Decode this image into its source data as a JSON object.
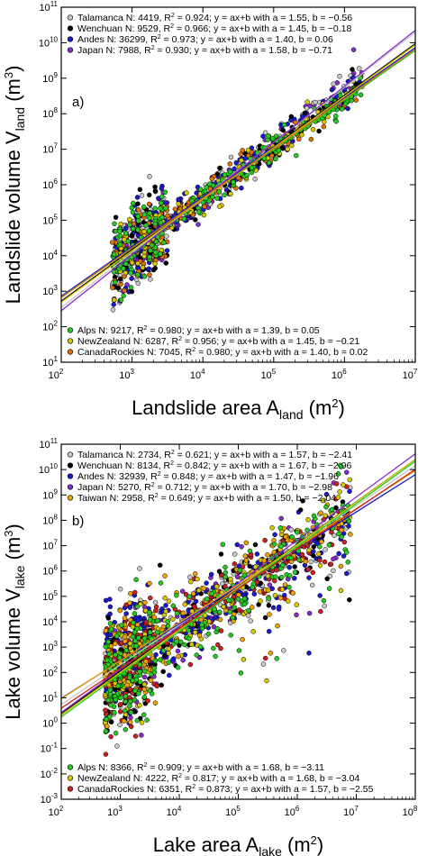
{
  "chart_data": [
    {
      "type": "scatter",
      "panel_label": "a)",
      "xscale": "log",
      "yscale": "log",
      "xlim": [
        100,
        10000000
      ],
      "ylim": [
        10,
        100000000000
      ],
      "xlabel": {
        "main": "Landslide area A",
        "sub": "land",
        "unit_pre": " (m",
        "unit_sup": "2",
        "unit_post": ")"
      },
      "ylabel": {
        "main": "Landslide volume V",
        "sub": "land",
        "unit_pre": " (m",
        "unit_sup": "3",
        "unit_post": ")"
      },
      "x_ticks": [
        {
          "base": "10",
          "exp": "2",
          "v": 100
        },
        {
          "base": "10",
          "exp": "3",
          "v": 1000
        },
        {
          "base": "10",
          "exp": "4",
          "v": 10000
        },
        {
          "base": "10",
          "exp": "5",
          "v": 100000
        },
        {
          "base": "10",
          "exp": "6",
          "v": 1000000
        },
        {
          "base": "10",
          "exp": "7",
          "v": 10000000
        }
      ],
      "y_ticks": [
        {
          "base": "10",
          "exp": "1",
          "v": 10
        },
        {
          "base": "10",
          "exp": "2",
          "v": 100
        },
        {
          "base": "10",
          "exp": "3",
          "v": 1000
        },
        {
          "base": "10",
          "exp": "4",
          "v": 10000
        },
        {
          "base": "10",
          "exp": "5",
          "v": 100000
        },
        {
          "base": "10",
          "exp": "6",
          "v": 1000000
        },
        {
          "base": "10",
          "exp": "7",
          "v": 10000000
        },
        {
          "base": "10",
          "exp": "8",
          "v": 100000000
        },
        {
          "base": "10",
          "exp": "9",
          "v": 1000000000
        },
        {
          "base": "10",
          "exp": "10",
          "v": 10000000000
        },
        {
          "base": "10",
          "exp": "11",
          "v": 100000000000
        }
      ],
      "legend_top": "top-left",
      "legend_bottom": "bottom-left",
      "series": [
        {
          "name": "Talamanca",
          "color": "#c8c8c8",
          "n": "4419",
          "r2": "0.924",
          "a": 1.55,
          "b": -0.56,
          "a_text": "1.55",
          "b_text": "−0.56",
          "legend": "top"
        },
        {
          "name": "Wenchuan",
          "color": "#000000",
          "n": "9529",
          "r2": "0.966",
          "a": 1.45,
          "b": -0.18,
          "a_text": "1.45",
          "b_text": "−0.18",
          "legend": "top"
        },
        {
          "name": "Andes",
          "color": "#1a1ad0",
          "n": "36299",
          "r2": "0.973",
          "a": 1.4,
          "b": 0.06,
          "a_text": "1.40",
          "b_text": "0.06",
          "legend": "top"
        },
        {
          "name": "Japan",
          "color": "#8a2bd0",
          "n": "7988",
          "r2": "0.930",
          "a": 1.58,
          "b": -0.71,
          "a_text": "1.58",
          "b_text": "−0.71",
          "legend": "top"
        },
        {
          "name": "Alps",
          "color": "#22cc22",
          "n": "9217",
          "r2": "0.980",
          "a": 1.39,
          "b": 0.05,
          "a_text": "1.39",
          "b_text": "0.05",
          "legend": "bottom"
        },
        {
          "name": "NewZealand",
          "color": "#d8c800",
          "n": "6287",
          "r2": "0.956",
          "a": 1.45,
          "b": -0.21,
          "a_text": "1.45",
          "b_text": "−0.21",
          "legend": "bottom"
        },
        {
          "name": "CanadaRockies",
          "color": "#e07000",
          "n": "7045",
          "r2": "0.980",
          "a": 1.4,
          "b": 0.02,
          "a_text": "1.40",
          "b_text": "0.02",
          "legend": "bottom"
        }
      ],
      "legend_fmt": {
        "n_prefix": " N: ",
        "r2_prefix": ", R",
        "r2_sup": "2",
        "r2_eq": " = ",
        "fit_text": "; y = ax+b with a = ",
        "b_prefix": ", b = "
      }
    },
    {
      "type": "scatter",
      "panel_label": "b)",
      "xscale": "log",
      "yscale": "log",
      "xlim": [
        100,
        100000000
      ],
      "ylim": [
        0.001,
        100000000000
      ],
      "xlabel": {
        "main": "Lake area A",
        "sub": "lake",
        "unit_pre": " (m",
        "unit_sup": "2",
        "unit_post": ")"
      },
      "ylabel": {
        "main": "Lake volume V",
        "sub": "lake",
        "unit_pre": " (m",
        "unit_sup": "3",
        "unit_post": ")"
      },
      "x_ticks": [
        {
          "base": "10",
          "exp": "2",
          "v": 100
        },
        {
          "base": "10",
          "exp": "3",
          "v": 1000
        },
        {
          "base": "10",
          "exp": "4",
          "v": 10000
        },
        {
          "base": "10",
          "exp": "5",
          "v": 100000
        },
        {
          "base": "10",
          "exp": "6",
          "v": 1000000
        },
        {
          "base": "10",
          "exp": "7",
          "v": 10000000
        },
        {
          "base": "10",
          "exp": "8",
          "v": 100000000
        }
      ],
      "y_ticks": [
        {
          "base": "10",
          "exp": "-3",
          "v": 0.001
        },
        {
          "base": "10",
          "exp": "-2",
          "v": 0.01
        },
        {
          "base": "10",
          "exp": "-1",
          "v": 0.1
        },
        {
          "base": "10",
          "exp": "0",
          "v": 1
        },
        {
          "base": "10",
          "exp": "1",
          "v": 10
        },
        {
          "base": "10",
          "exp": "2",
          "v": 100
        },
        {
          "base": "10",
          "exp": "3",
          "v": 1000
        },
        {
          "base": "10",
          "exp": "4",
          "v": 10000
        },
        {
          "base": "10",
          "exp": "5",
          "v": 100000
        },
        {
          "base": "10",
          "exp": "6",
          "v": 1000000
        },
        {
          "base": "10",
          "exp": "7",
          "v": 10000000
        },
        {
          "base": "10",
          "exp": "8",
          "v": 100000000
        },
        {
          "base": "10",
          "exp": "9",
          "v": 1000000000
        },
        {
          "base": "10",
          "exp": "10",
          "v": 10000000000
        },
        {
          "base": "10",
          "exp": "11",
          "v": 100000000000
        }
      ],
      "legend_top": "top-left",
      "legend_bottom": "bottom-left",
      "series": [
        {
          "name": "Talamanca",
          "color": "#c8c8c8",
          "n": "2734",
          "r2": "0.621",
          "a": 1.57,
          "b": -2.41,
          "a_text": "1.57",
          "b_text": "−2.41",
          "legend": "top"
        },
        {
          "name": "Wenchuan",
          "color": "#000000",
          "n": "8134",
          "r2": "0.842",
          "a": 1.67,
          "b": -2.96,
          "a_text": "1.67",
          "b_text": "−2.96",
          "legend": "top"
        },
        {
          "name": "Andes",
          "color": "#1a1ad0",
          "n": "32939",
          "r2": "0.848",
          "a": 1.47,
          "b": -1.96,
          "a_text": "1.47",
          "b_text": "−1.96",
          "legend": "top"
        },
        {
          "name": "Japan",
          "color": "#8a2bd0",
          "n": "5270",
          "r2": "0.712",
          "a": 1.7,
          "b": -2.98,
          "a_text": "1.70",
          "b_text": "−2.98",
          "legend": "top"
        },
        {
          "name": "Taiwan",
          "color": "#f0a000",
          "n": "2958",
          "r2": "0.649",
          "a": 1.5,
          "b": -2.04,
          "a_text": "1.50",
          "b_text": "−2.04",
          "legend": "top"
        },
        {
          "name": "Alps",
          "color": "#22cc22",
          "n": "8366",
          "r2": "0.909",
          "a": 1.68,
          "b": -3.11,
          "a_text": "1.68",
          "b_text": "−3.11",
          "legend": "bottom"
        },
        {
          "name": "NewZealand",
          "color": "#d8c800",
          "n": "4222",
          "r2": "0.817",
          "a": 1.68,
          "b": -3.04,
          "a_text": "1.68",
          "b_text": "−3.04",
          "legend": "bottom"
        },
        {
          "name": "CanadaRockies",
          "color": "#cc2020",
          "n": "6351",
          "r2": "0.873",
          "a": 1.57,
          "b": -2.55,
          "a_text": "1.57",
          "b_text": "−2.55",
          "legend": "bottom"
        }
      ],
      "legend_fmt": {
        "n_prefix": " N: ",
        "r2_prefix": ", R",
        "r2_sup": "2",
        "r2_eq": " = ",
        "fit_text": "; y = ax+b with a = ",
        "b_prefix": ", b = "
      }
    }
  ]
}
